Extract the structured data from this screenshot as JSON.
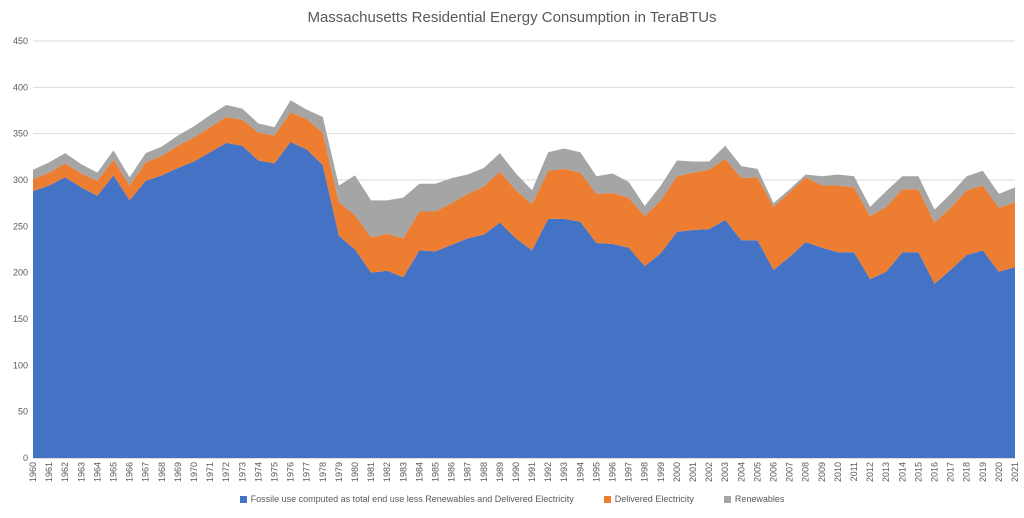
{
  "chart_data": {
    "type": "area",
    "title": "Massachusetts Residential Energy Consumption in TeraBTUs",
    "xlabel": "",
    "ylabel": "",
    "ylim": [
      0,
      450
    ],
    "yticks": [
      "0",
      "50",
      "100",
      "150",
      "200",
      "250",
      "300",
      "350",
      "400",
      "450"
    ],
    "grid": true,
    "legend_position": "bottom",
    "stacked": true,
    "categories": [
      "1960",
      "1961",
      "1962",
      "1963",
      "1964",
      "1965",
      "1966",
      "1967",
      "1968",
      "1969",
      "1970",
      "1971",
      "1972",
      "1973",
      "1974",
      "1975",
      "1976",
      "1977",
      "1978",
      "1979",
      "1980",
      "1981",
      "1982",
      "1983",
      "1984",
      "1985",
      "1986",
      "1987",
      "1988",
      "1989",
      "1990",
      "1991",
      "1992",
      "1993",
      "1994",
      "1995",
      "1996",
      "1997",
      "1998",
      "1999",
      "2000",
      "2001",
      "2002",
      "2003",
      "2004",
      "2005",
      "2006",
      "2007",
      "2008",
      "2009",
      "2010",
      "2011",
      "2012",
      "2013",
      "2014",
      "2015",
      "2016",
      "2017",
      "2018",
      "2019",
      "2020",
      "2021"
    ],
    "series": [
      {
        "name": "Fossile use computed as total end use less Renewables and Delivered Electricity",
        "color": "#4472c4",
        "values": [
          288,
          294,
          303,
          292,
          283,
          305,
          278,
          299,
          305,
          313,
          320,
          330,
          340,
          337,
          321,
          318,
          341,
          333,
          316,
          240,
          225,
          200,
          202,
          195,
          224,
          223,
          230,
          237,
          241,
          254,
          237,
          224,
          258,
          258,
          255,
          232,
          231,
          227,
          207,
          221,
          244,
          246,
          247,
          257,
          235,
          235,
          203,
          217,
          233,
          227,
          222,
          222,
          193,
          201,
          222,
          222,
          188,
          203,
          219,
          224,
          201,
          206
        ]
      },
      {
        "name": "Delivered Electricity",
        "color": "#ed7d31",
        "values": [
          13,
          14,
          15,
          15,
          16,
          17,
          16,
          20,
          21,
          24,
          26,
          27,
          28,
          28,
          30,
          30,
          32,
          33,
          35,
          36,
          37,
          38,
          40,
          42,
          42,
          43,
          45,
          48,
          52,
          55,
          52,
          50,
          52,
          54,
          53,
          53,
          55,
          54,
          54,
          57,
          60,
          62,
          64,
          66,
          67,
          68,
          68,
          70,
          70,
          67,
          72,
          70,
          68,
          70,
          68,
          68,
          66,
          67,
          70,
          70,
          69,
          70
        ]
      },
      {
        "name": "Renewables",
        "color": "#a5a5a5",
        "values": [
          10,
          11,
          11,
          10,
          9,
          10,
          9,
          10,
          10,
          11,
          12,
          13,
          13,
          12,
          10,
          9,
          13,
          10,
          17,
          18,
          43,
          40,
          36,
          44,
          30,
          30,
          27,
          21,
          20,
          20,
          18,
          15,
          20,
          22,
          22,
          19,
          21,
          17,
          11,
          16,
          17,
          12,
          9,
          14,
          13,
          9,
          4,
          3,
          3,
          10,
          12,
          12,
          10,
          17,
          14,
          14,
          14,
          15,
          15,
          16,
          15,
          16
        ]
      }
    ]
  }
}
